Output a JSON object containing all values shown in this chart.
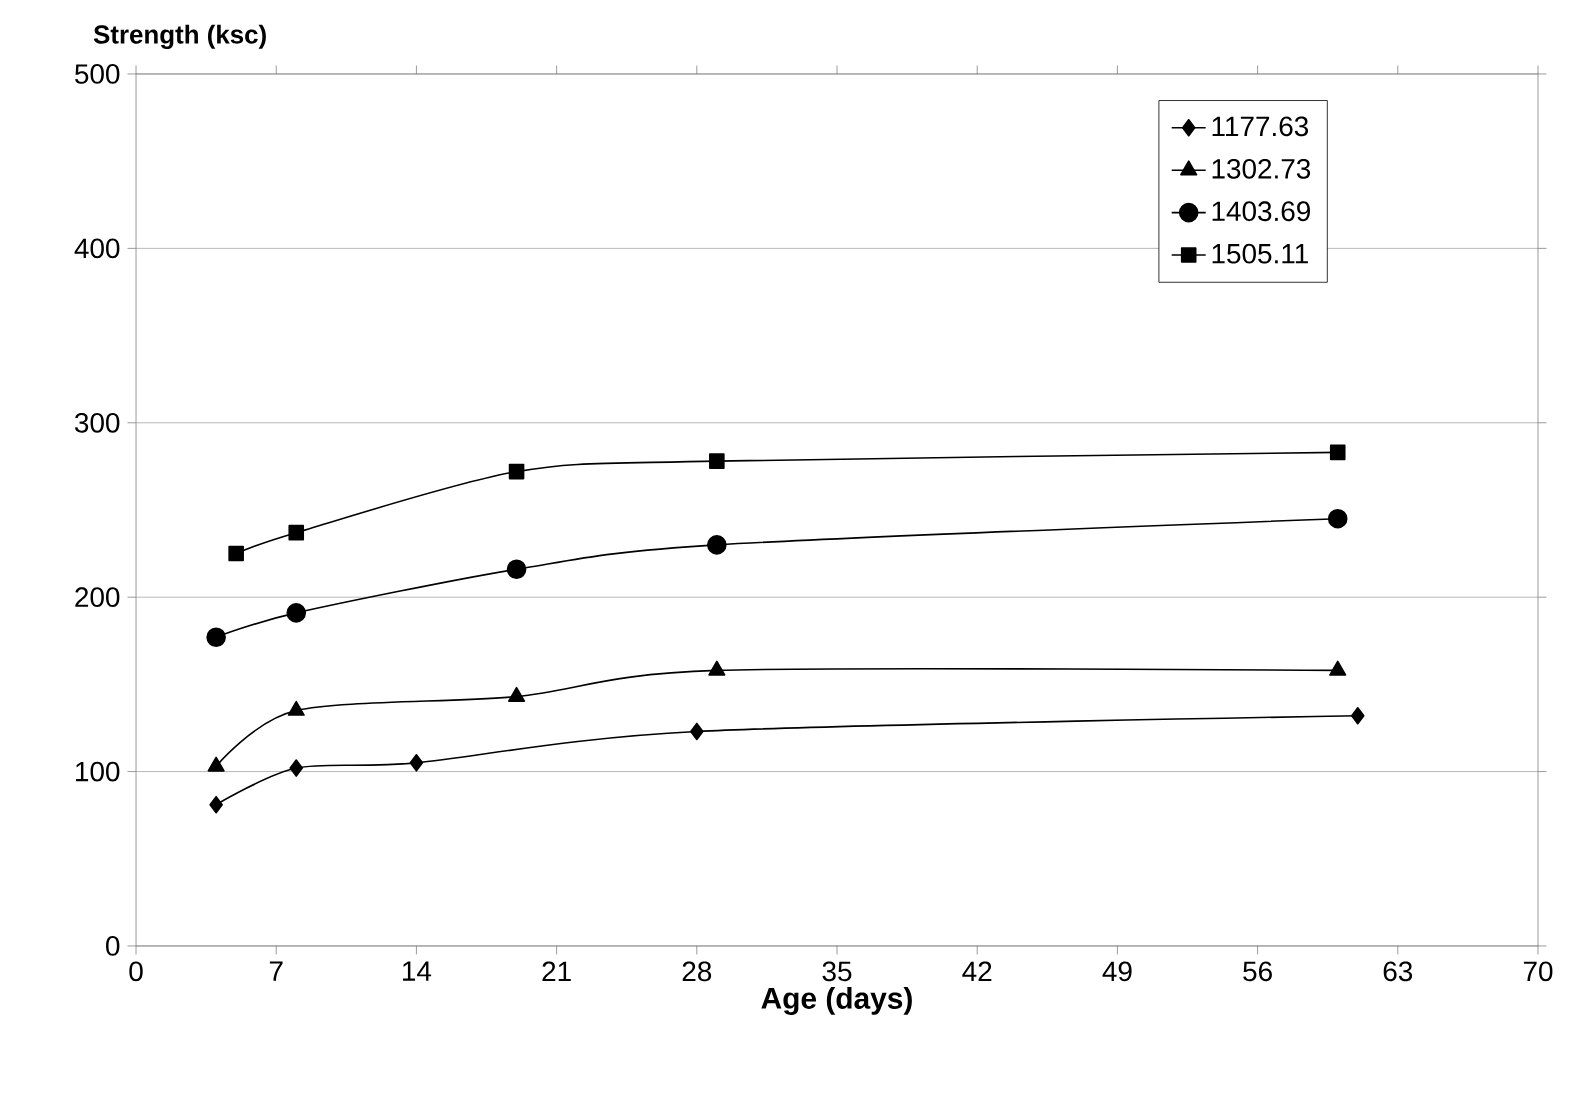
{
  "chart_data": {
    "type": "line",
    "xlabel": "Age (days)",
    "ylabel": "Strength (ksc)",
    "xlim": [
      0,
      70
    ],
    "xticks": [
      0,
      7,
      14,
      21,
      28,
      35,
      42,
      49,
      56,
      63,
      70
    ],
    "ylim": [
      0,
      500
    ],
    "yticks": [
      0,
      100,
      200,
      300,
      400,
      500
    ],
    "grid": "y",
    "legend": "top right",
    "series": [
      {
        "name": "1177.63",
        "color": "#000000",
        "marker": "diamond",
        "x": [
          4,
          8,
          14,
          28,
          61
        ],
        "values": [
          81,
          102,
          105,
          123,
          132
        ]
      },
      {
        "name": "1302.73",
        "color": "#000000",
        "marker": "triangle",
        "x": [
          4,
          8,
          19,
          29,
          60
        ],
        "values": [
          103,
          135,
          143,
          158,
          158
        ]
      },
      {
        "name": "1403.69",
        "color": "#000000",
        "marker": "circle",
        "x": [
          4,
          8,
          19,
          29,
          60
        ],
        "values": [
          177,
          191,
          216,
          230,
          245
        ]
      },
      {
        "name": "1505.11",
        "color": "#000000",
        "marker": "square",
        "x": [
          5,
          8,
          19,
          29,
          60
        ],
        "values": [
          225,
          237,
          272,
          278,
          283
        ]
      }
    ]
  }
}
